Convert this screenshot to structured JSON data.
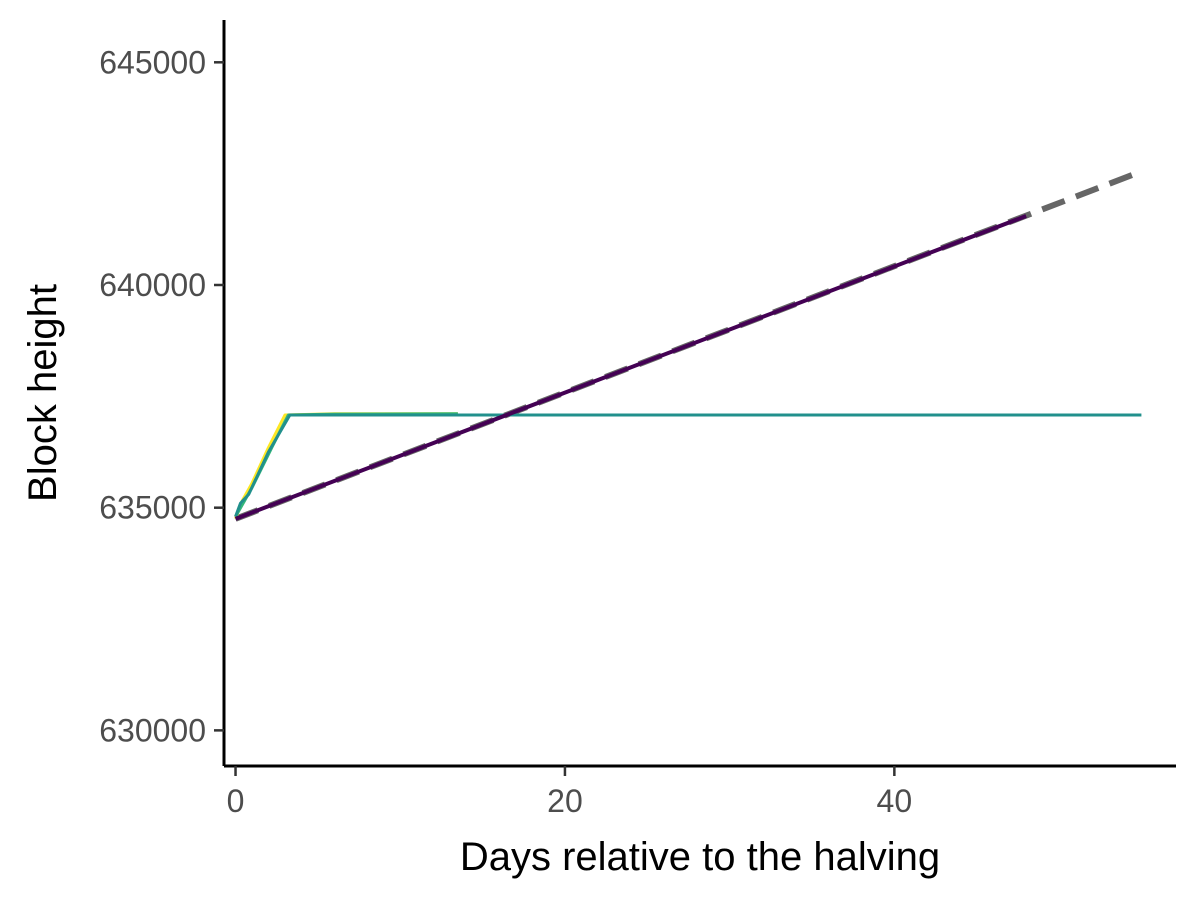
{
  "chart_data": {
    "type": "line",
    "title": "",
    "xlabel": "Days relative to the halving",
    "ylabel": "Block height",
    "xlim": [
      -0.7,
      57.1
    ],
    "ylim": [
      629200,
      645950
    ],
    "x_ticks": [
      0,
      20,
      40
    ],
    "x_tick_labels": [
      "0",
      "20",
      "40"
    ],
    "y_ticks": [
      630000,
      635000,
      640000,
      645000
    ],
    "y_tick_labels": [
      "630000",
      "635000",
      "640000",
      "645000"
    ],
    "grid": false,
    "legend": "none",
    "series": [
      {
        "color": "#666666",
        "dashed": true,
        "width": 6,
        "points": [
          [
            0,
            634750
          ],
          [
            55,
            642550
          ]
        ]
      },
      {
        "color": "#FDE725",
        "dashed": false,
        "width": 3,
        "points": [
          [
            0,
            634750
          ],
          [
            0.4,
            635150
          ],
          [
            1.0,
            635550
          ],
          [
            2.0,
            636350
          ],
          [
            3.0,
            637080
          ],
          [
            6.0,
            637110
          ],
          [
            13.5,
            637110
          ]
        ]
      },
      {
        "color": "#35B779",
        "dashed": false,
        "width": 3,
        "points": [
          [
            0,
            634800
          ],
          [
            1.0,
            635450
          ],
          [
            2.2,
            636350
          ],
          [
            3.2,
            637080
          ],
          [
            6.0,
            637100
          ],
          [
            13.5,
            637110
          ]
        ]
      },
      {
        "color": "#21908C",
        "dashed": false,
        "width": 3,
        "points": [
          [
            0,
            634800
          ],
          [
            0.3,
            635100
          ],
          [
            0.8,
            635300
          ],
          [
            2.0,
            636250
          ],
          [
            3.3,
            637080
          ],
          [
            55,
            637080
          ]
        ]
      },
      {
        "color": "#440154",
        "dashed": false,
        "width": 4,
        "points": [
          [
            0,
            634750
          ],
          [
            48,
            641550
          ]
        ]
      }
    ]
  }
}
